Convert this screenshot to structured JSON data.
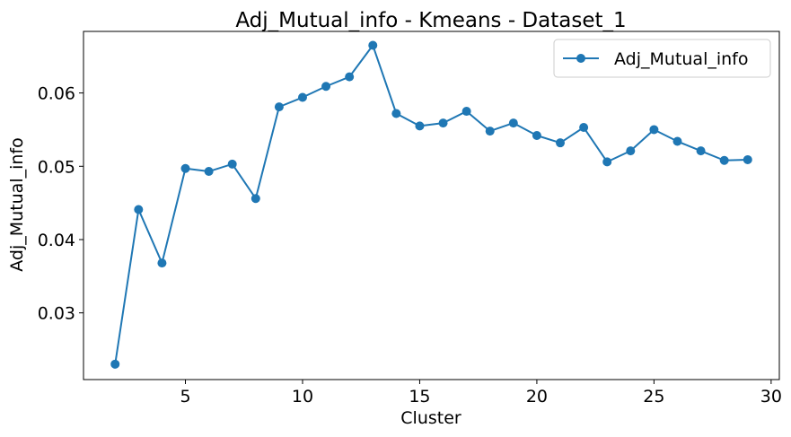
{
  "chart_data": {
    "type": "line",
    "title": "Adj_Mutual_info - Kmeans - Dataset_1",
    "xlabel": "Cluster",
    "ylabel": "Adj_Mutual_info",
    "xlim": [
      0.65,
      30.35
    ],
    "ylim": [
      0.0209,
      0.0684
    ],
    "xticks": [
      5,
      10,
      15,
      20,
      25,
      30
    ],
    "yticks": [
      0.03,
      0.04,
      0.05,
      0.06
    ],
    "ytick_labels": [
      "0.03",
      "0.04",
      "0.05",
      "0.06"
    ],
    "grid": false,
    "legend_position": "upper right",
    "series": [
      {
        "name": "Adj_Mutual_info",
        "color": "#1f77b4",
        "marker": "circle",
        "x": [
          2,
          3,
          4,
          5,
          6,
          7,
          8,
          9,
          10,
          11,
          12,
          13,
          14,
          15,
          16,
          17,
          18,
          19,
          20,
          21,
          22,
          23,
          24,
          25,
          26,
          27,
          28,
          29
        ],
        "values": [
          0.023,
          0.0441,
          0.0368,
          0.0497,
          0.0493,
          0.0503,
          0.0456,
          0.0581,
          0.0594,
          0.0609,
          0.0622,
          0.0665,
          0.0572,
          0.0555,
          0.0559,
          0.0575,
          0.0548,
          0.0559,
          0.0542,
          0.0532,
          0.0553,
          0.0506,
          0.0521,
          0.055,
          0.0534,
          0.0521,
          0.0508,
          0.0509
        ]
      }
    ]
  }
}
